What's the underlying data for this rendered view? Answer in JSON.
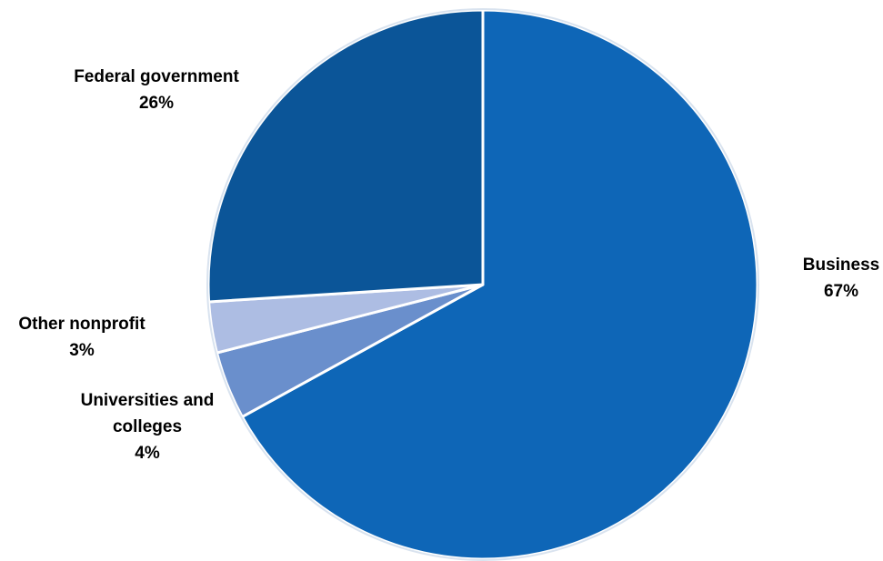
{
  "chart_data": {
    "type": "pie",
    "title": "",
    "slices": [
      {
        "name": "Business",
        "label_lines": [
          "Business"
        ],
        "value": 67,
        "value_label": "67%",
        "color": "#0E66B7"
      },
      {
        "name": "Universities and colleges",
        "label_lines": [
          "Universities and",
          "colleges"
        ],
        "value": 4,
        "value_label": "4%",
        "color": "#6A8FCC"
      },
      {
        "name": "Other nonprofit",
        "label_lines": [
          "Other nonprofit"
        ],
        "value": 3,
        "value_label": "3%",
        "color": "#ADBDE3"
      },
      {
        "name": "Federal government",
        "label_lines": [
          "Federal government"
        ],
        "value": 26,
        "value_label": "26%",
        "color": "#0B5598"
      }
    ],
    "legend": "none",
    "start_angle": "12 o'clock",
    "direction": "clockwise"
  }
}
